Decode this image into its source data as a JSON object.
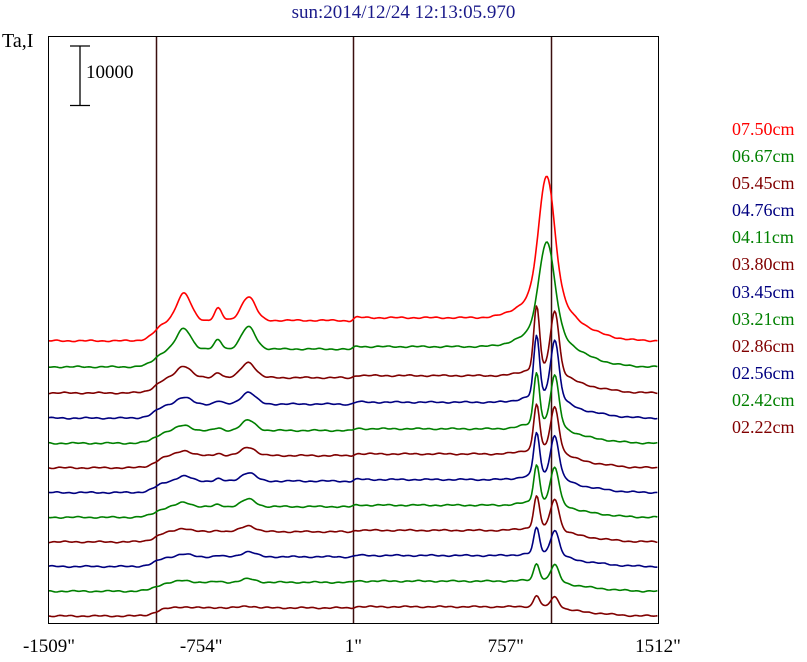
{
  "title": "sun:2014/12/24 12:13:05.970",
  "ylabel": "Ta,I",
  "scale_bar": {
    "label": "10000",
    "value": 10000
  },
  "chart_data": {
    "type": "line",
    "x_ticks": [
      "-1509\"",
      "-754\"",
      "1\"",
      "757\"",
      "1512\""
    ],
    "xlim": [
      -1509,
      1512
    ],
    "vertical_markers": [
      -980,
      1,
      980
    ],
    "offset_step": 7500,
    "series": [
      {
        "name": "07.50cm",
        "color": "#ff0000",
        "level": 8000,
        "limb": [
          9500,
          10500
        ],
        "peak": 35000,
        "bumps": [
          [
            -840,
            8000
          ],
          [
            -520,
            7000
          ]
        ],
        "double_peak": false
      },
      {
        "name": "06.67cm",
        "color": "#008000",
        "level": 7000,
        "limb": [
          7000,
          7500
        ],
        "peak": 26000,
        "bumps": [
          [
            -840,
            6000
          ],
          [
            -520,
            6500
          ]
        ],
        "double_peak": false
      },
      {
        "name": "05.45cm",
        "color": "#800000",
        "level": 6000,
        "limb": [
          6500,
          7000
        ],
        "peak": 22000,
        "bumps": [
          [
            -840,
            3500
          ],
          [
            -520,
            4500
          ]
        ],
        "double_peak": true
      },
      {
        "name": "04.76cm",
        "color": "#000080",
        "level": 5500,
        "limb": [
          6000,
          6500
        ],
        "peak": 21000,
        "bumps": [
          [
            -840,
            2000
          ],
          [
            -520,
            3500
          ]
        ],
        "double_peak": true
      },
      {
        "name": "04.11cm",
        "color": "#008000",
        "level": 5000,
        "limb": [
          5500,
          6000
        ],
        "peak": 18000,
        "bumps": [
          [
            -840,
            1500
          ],
          [
            -520,
            3000
          ]
        ],
        "double_peak": true
      },
      {
        "name": "03.80cm",
        "color": "#800000",
        "level": 4800,
        "limb": [
          5000,
          5500
        ],
        "peak": 16000,
        "bumps": [
          [
            -840,
            1500
          ],
          [
            -520,
            2500
          ]
        ],
        "double_peak": true
      },
      {
        "name": "03.45cm",
        "color": "#000080",
        "level": 4500,
        "limb": [
          4500,
          5000
        ],
        "peak": 15000,
        "bumps": [
          [
            -840,
            1500
          ],
          [
            -520,
            2500
          ]
        ],
        "double_peak": true
      },
      {
        "name": "03.21cm",
        "color": "#008000",
        "level": 4200,
        "limb": [
          4000,
          4500
        ],
        "peak": 13000,
        "bumps": [
          [
            -840,
            1200
          ],
          [
            -520,
            2200
          ]
        ],
        "double_peak": true
      },
      {
        "name": "02.86cm",
        "color": "#800000",
        "level": 4000,
        "limb": [
          3500,
          4000
        ],
        "peak": 11000,
        "bumps": [
          [
            -840,
            1000
          ],
          [
            -520,
            1800
          ]
        ],
        "double_peak": true
      },
      {
        "name": "02.56cm",
        "color": "#000080",
        "level": 3800,
        "limb": [
          3000,
          3500
        ],
        "peak": 9000,
        "bumps": [
          [
            -840,
            800
          ],
          [
            -520,
            1500
          ]
        ],
        "double_peak": true
      },
      {
        "name": "02.42cm",
        "color": "#008000",
        "level": 3500,
        "limb": [
          2500,
          3000
        ],
        "peak": 6000,
        "bumps": [
          [
            -840,
            500
          ],
          [
            -520,
            1000
          ]
        ],
        "double_peak": true
      },
      {
        "name": "02.22cm",
        "color": "#800000",
        "level": 3200,
        "limb": [
          2000,
          2500
        ],
        "peak": 4000,
        "bumps": [
          [
            -840,
            300
          ],
          [
            -520,
            500
          ]
        ],
        "double_peak": true
      }
    ]
  }
}
